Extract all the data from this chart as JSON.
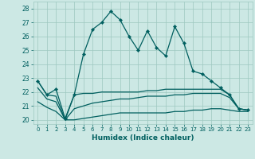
{
  "x": [
    0,
    1,
    2,
    3,
    4,
    5,
    6,
    7,
    8,
    9,
    10,
    11,
    12,
    13,
    14,
    15,
    16,
    17,
    18,
    19,
    20,
    21,
    22,
    23
  ],
  "humidex_main": [
    22.8,
    21.8,
    22.2,
    20.1,
    21.8,
    24.7,
    26.5,
    27.0,
    27.8,
    27.2,
    26.0,
    25.0,
    26.4,
    25.2,
    24.6,
    26.7,
    25.5,
    23.5,
    23.3,
    22.8,
    22.3,
    21.8,
    20.8,
    20.7
  ],
  "line2": [
    22.8,
    21.8,
    21.7,
    20.0,
    21.8,
    21.9,
    21.9,
    22.0,
    22.0,
    22.0,
    22.0,
    22.0,
    22.1,
    22.1,
    22.2,
    22.2,
    22.2,
    22.2,
    22.2,
    22.2,
    22.2,
    21.8,
    20.8,
    20.7
  ],
  "line3": [
    22.3,
    21.5,
    21.3,
    20.0,
    20.8,
    21.0,
    21.2,
    21.3,
    21.4,
    21.5,
    21.5,
    21.6,
    21.7,
    21.7,
    21.7,
    21.8,
    21.8,
    21.9,
    21.9,
    21.9,
    21.9,
    21.6,
    20.8,
    20.7
  ],
  "line4": [
    21.3,
    20.9,
    20.6,
    20.0,
    20.0,
    20.1,
    20.2,
    20.3,
    20.4,
    20.5,
    20.5,
    20.5,
    20.5,
    20.5,
    20.5,
    20.6,
    20.6,
    20.7,
    20.7,
    20.8,
    20.8,
    20.7,
    20.6,
    20.6
  ],
  "color": "#005f5f",
  "bg_color": "#cce8e4",
  "grid_color": "#9ec8c0",
  "xlabel": "Humidex (Indice chaleur)",
  "ylabel_min": 20,
  "ylabel_max": 28,
  "xlim": [
    -0.5,
    23.5
  ],
  "ylim": [
    19.7,
    28.5
  ]
}
